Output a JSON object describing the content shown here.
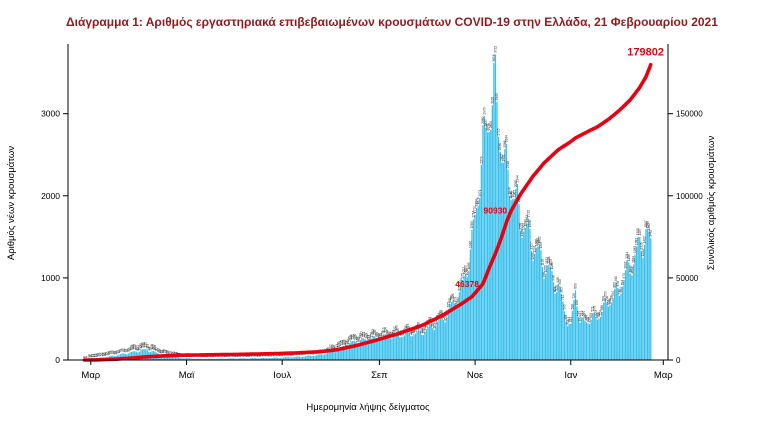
{
  "title": "Διάγραμμα 1: Αριθμός εργαστηριακά επιβεβαιωμένων κρουσμάτων COVID-19 στην Ελλάδα, 21 Φεβρουαρίου 2021",
  "colors": {
    "bars": "#3BC0EC",
    "line": "#E60012",
    "title": "#8E1B1E",
    "axis": "#000000",
    "bar_labels": "#222222"
  },
  "chart_data": {
    "type": "combo",
    "title": "Διάγραμμα 1: Αριθμός εργαστηριακά επιβεβαιωμένων κρουσμάτων COVID-19 στην Ελλάδα, 21 Φεβρουαρίου 2021",
    "x_label": "Ημερομηνία λήψης δείγματος",
    "left_axis": {
      "label": "Αριθμός νέων κρουσμάτων",
      "ticks": [
        0,
        1000,
        2000,
        3000
      ],
      "range": [
        0,
        3800
      ]
    },
    "right_axis": {
      "label": "Συνολικός αριθμός κρουσμάτων",
      "ticks": [
        0,
        50000,
        100000,
        150000
      ],
      "range": [
        0,
        190000
      ],
      "scale_ratio": 50
    },
    "x_ticks": [
      {
        "label": "Μαρ",
        "day": 4
      },
      {
        "label": "Μαϊ",
        "day": 65
      },
      {
        "label": "Ιουλ",
        "day": 126
      },
      {
        "label": "Σεπ",
        "day": 188
      },
      {
        "label": "Νοε",
        "day": 249
      },
      {
        "label": "Ιαν",
        "day": 310
      },
      {
        "label": "Μαρ",
        "day": 369
      }
    ],
    "series": [
      {
        "name": "daily_new_cases",
        "display": "Αριθμός νέων κρουσμάτων",
        "type": "bar",
        "axis": "left",
        "anchors": [
          [
            0,
            3
          ],
          [
            8,
            20
          ],
          [
            20,
            60
          ],
          [
            30,
            100
          ],
          [
            39,
            135
          ],
          [
            50,
            70
          ],
          [
            62,
            25
          ],
          [
            75,
            15
          ],
          [
            90,
            18
          ],
          [
            105,
            22
          ],
          [
            120,
            28
          ],
          [
            135,
            40
          ],
          [
            150,
            65
          ],
          [
            160,
            120
          ],
          [
            172,
            240
          ],
          [
            185,
            280
          ],
          [
            200,
            320
          ],
          [
            215,
            360
          ],
          [
            228,
            520
          ],
          [
            240,
            880
          ],
          [
            247,
            1500
          ],
          [
            252,
            2400
          ],
          [
            256,
            3000
          ],
          [
            259,
            3350
          ],
          [
            262,
            3500
          ],
          [
            265,
            2950
          ],
          [
            268,
            2500
          ],
          [
            272,
            2300
          ],
          [
            278,
            1850
          ],
          [
            286,
            1500
          ],
          [
            293,
            1250
          ],
          [
            302,
            950
          ],
          [
            308,
            500
          ],
          [
            310,
            420
          ],
          [
            313,
            930
          ],
          [
            316,
            480
          ],
          [
            319,
            510
          ],
          [
            327,
            560
          ],
          [
            334,
            760
          ],
          [
            341,
            920
          ],
          [
            348,
            1230
          ],
          [
            354,
            1480
          ],
          [
            358,
            1650
          ],
          [
            361,
            1470
          ]
        ]
      },
      {
        "name": "cumulative_cases",
        "display": "Συνολικός αριθμός κρουσμάτων",
        "type": "line",
        "axis": "right",
        "anchors": [
          [
            0,
            3
          ],
          [
            8,
            100
          ],
          [
            20,
            500
          ],
          [
            30,
            1200
          ],
          [
            39,
            1900
          ],
          [
            50,
            2500
          ],
          [
            62,
            2900
          ],
          [
            75,
            3100
          ],
          [
            90,
            3300
          ],
          [
            105,
            3550
          ],
          [
            120,
            3850
          ],
          [
            135,
            4300
          ],
          [
            150,
            5000
          ],
          [
            160,
            6100
          ],
          [
            172,
            8500
          ],
          [
            185,
            11800
          ],
          [
            200,
            16000
          ],
          [
            215,
            21000
          ],
          [
            228,
            27000
          ],
          [
            240,
            34000
          ],
          [
            247,
            38500
          ],
          [
            254,
            46378
          ],
          [
            258,
            56000
          ],
          [
            262,
            65000
          ],
          [
            266,
            75000
          ],
          [
            269,
            84000
          ],
          [
            272,
            90930
          ],
          [
            278,
            101000
          ],
          [
            286,
            112000
          ],
          [
            293,
            120000
          ],
          [
            302,
            128000
          ],
          [
            310,
            133000
          ],
          [
            313,
            135200
          ],
          [
            319,
            138200
          ],
          [
            327,
            142000
          ],
          [
            334,
            146500
          ],
          [
            341,
            152000
          ],
          [
            348,
            158500
          ],
          [
            354,
            166000
          ],
          [
            358,
            172500
          ],
          [
            361,
            179802
          ]
        ]
      }
    ],
    "annotations": [
      {
        "day": 254,
        "value": 46378,
        "label": "46378"
      },
      {
        "day": 272,
        "value": 90930,
        "label": "90930"
      },
      {
        "day": 361,
        "value": 179802,
        "label": "179802"
      }
    ],
    "weekly_pattern": {
      "amp1": 0.22,
      "amp2": 0.07
    }
  }
}
